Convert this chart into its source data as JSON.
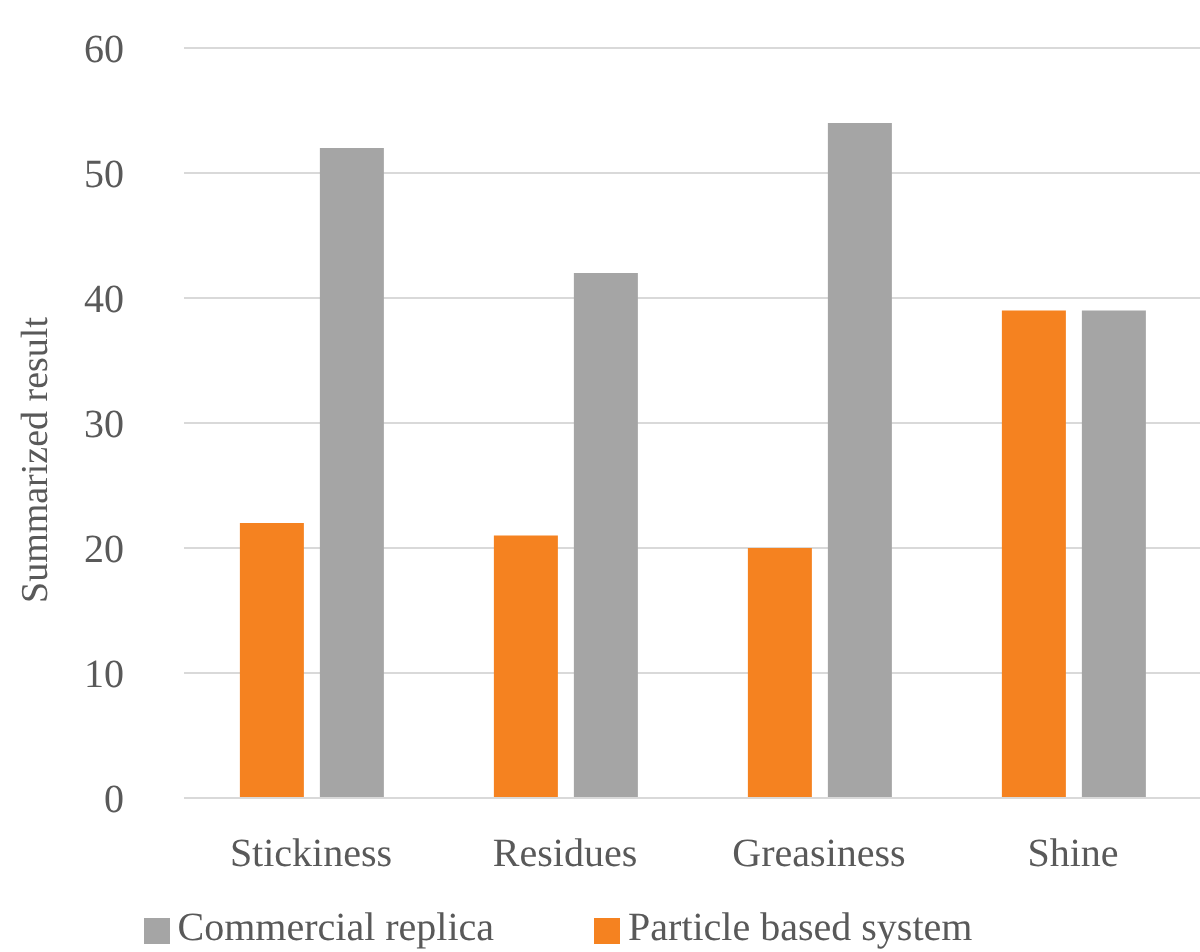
{
  "chart_data": {
    "type": "bar",
    "ylabel": "Summarized result",
    "categories": [
      "Stickiness",
      "Residues",
      "Greasiness",
      "Shine"
    ],
    "series": [
      {
        "name": "Particle based system",
        "color": "#f58220",
        "values": [
          22,
          21,
          20,
          39
        ]
      },
      {
        "name": "Commercial replica",
        "color": "#a5a5a5",
        "values": [
          52,
          42,
          54,
          39
        ]
      }
    ],
    "ylim": [
      0,
      60
    ],
    "yticks": [
      0,
      10,
      20,
      30,
      40,
      50,
      60
    ],
    "grid": "y",
    "legend": "bottom"
  }
}
